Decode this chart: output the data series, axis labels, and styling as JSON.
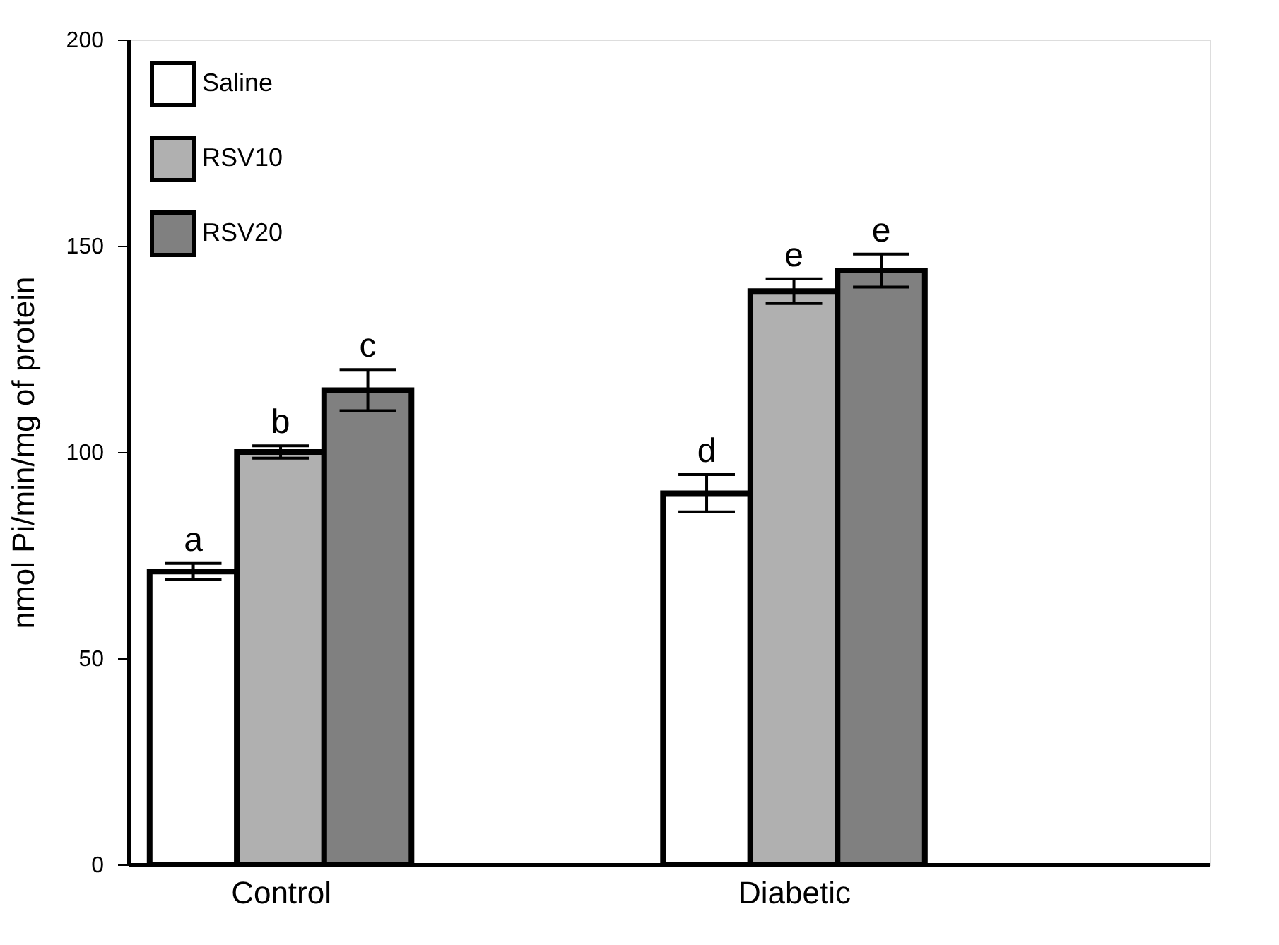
{
  "chart_data": {
    "type": "bar",
    "ylabel": "nmol Pi/min/mg of protein",
    "categories": [
      "Control",
      "Diabetic"
    ],
    "series": [
      {
        "name": "Saline",
        "color": "#ffffff",
        "values": [
          71,
          90
        ],
        "errors": [
          2,
          4.5
        ]
      },
      {
        "name": "RSV10",
        "color": "#b0b0b0",
        "values": [
          100,
          139
        ],
        "errors": [
          1.5,
          3
        ]
      },
      {
        "name": "RSV20",
        "color": "#808080",
        "values": [
          115,
          144
        ],
        "errors": [
          5,
          4
        ]
      }
    ],
    "ylim": [
      0,
      200
    ],
    "yticks": [
      0,
      50,
      100,
      150,
      200
    ],
    "grid": false,
    "legend": "top left",
    "annotations": [
      "a",
      "b",
      "c",
      "d",
      "e",
      "e"
    ]
  }
}
